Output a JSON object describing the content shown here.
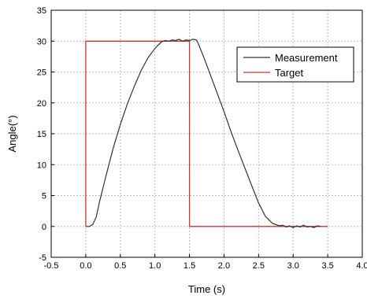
{
  "chart_data": {
    "type": "line",
    "title": "",
    "xlabel": "Time (s)",
    "ylabel": "Angle(°)",
    "xlim": [
      -0.5,
      4.0
    ],
    "ylim": [
      -5,
      35
    ],
    "xticks": [
      -0.5,
      0.0,
      0.5,
      1.0,
      1.5,
      2.0,
      2.5,
      3.0,
      3.5,
      4.0
    ],
    "xtick_labels": [
      "-0.5",
      "0.0",
      "0.5",
      "1.0",
      "1.5",
      "2.0",
      "2.5",
      "3.0",
      "3.5",
      "4.0"
    ],
    "yticks": [
      -5,
      0,
      5,
      10,
      15,
      20,
      25,
      30,
      35
    ],
    "ytick_labels": [
      "-5",
      "0",
      "5",
      "10",
      "15",
      "20",
      "25",
      "30",
      "35"
    ],
    "grid": true,
    "legend_position": "top-right",
    "series": [
      {
        "name": "Measurement",
        "color": "#333333",
        "x": [
          0.0,
          0.05,
          0.1,
          0.15,
          0.2,
          0.3,
          0.4,
          0.5,
          0.6,
          0.7,
          0.8,
          0.9,
          1.0,
          1.05,
          1.1,
          1.15,
          1.2,
          1.25,
          1.3,
          1.35,
          1.4,
          1.45,
          1.5,
          1.55,
          1.6,
          1.62,
          1.7,
          1.8,
          1.9,
          2.0,
          2.1,
          2.2,
          2.3,
          2.4,
          2.5,
          2.6,
          2.7,
          2.8,
          2.85,
          2.9,
          2.95,
          3.0,
          3.05,
          3.1,
          3.15,
          3.2,
          3.25,
          3.3,
          3.35,
          3.4
        ],
        "y": [
          0.0,
          0.0,
          0.3,
          1.5,
          4.0,
          8.5,
          12.8,
          16.5,
          19.8,
          22.6,
          25.2,
          27.3,
          28.8,
          29.4,
          29.9,
          30.1,
          30.0,
          30.2,
          30.1,
          30.3,
          30.0,
          30.2,
          30.1,
          30.3,
          30.2,
          29.8,
          27.6,
          24.6,
          21.6,
          18.6,
          15.4,
          12.4,
          9.5,
          6.6,
          3.8,
          1.6,
          0.5,
          0.1,
          0.2,
          -0.1,
          0.1,
          -0.2,
          0.1,
          -0.1,
          0.2,
          -0.1,
          0.0,
          -0.2,
          0.1,
          0.0
        ]
      },
      {
        "name": "Target",
        "color": "#cc3333",
        "x": [
          0.0,
          0.0,
          1.5,
          1.5,
          3.5
        ],
        "y": [
          0.0,
          30.0,
          30.0,
          0.0,
          0.0
        ]
      }
    ]
  }
}
